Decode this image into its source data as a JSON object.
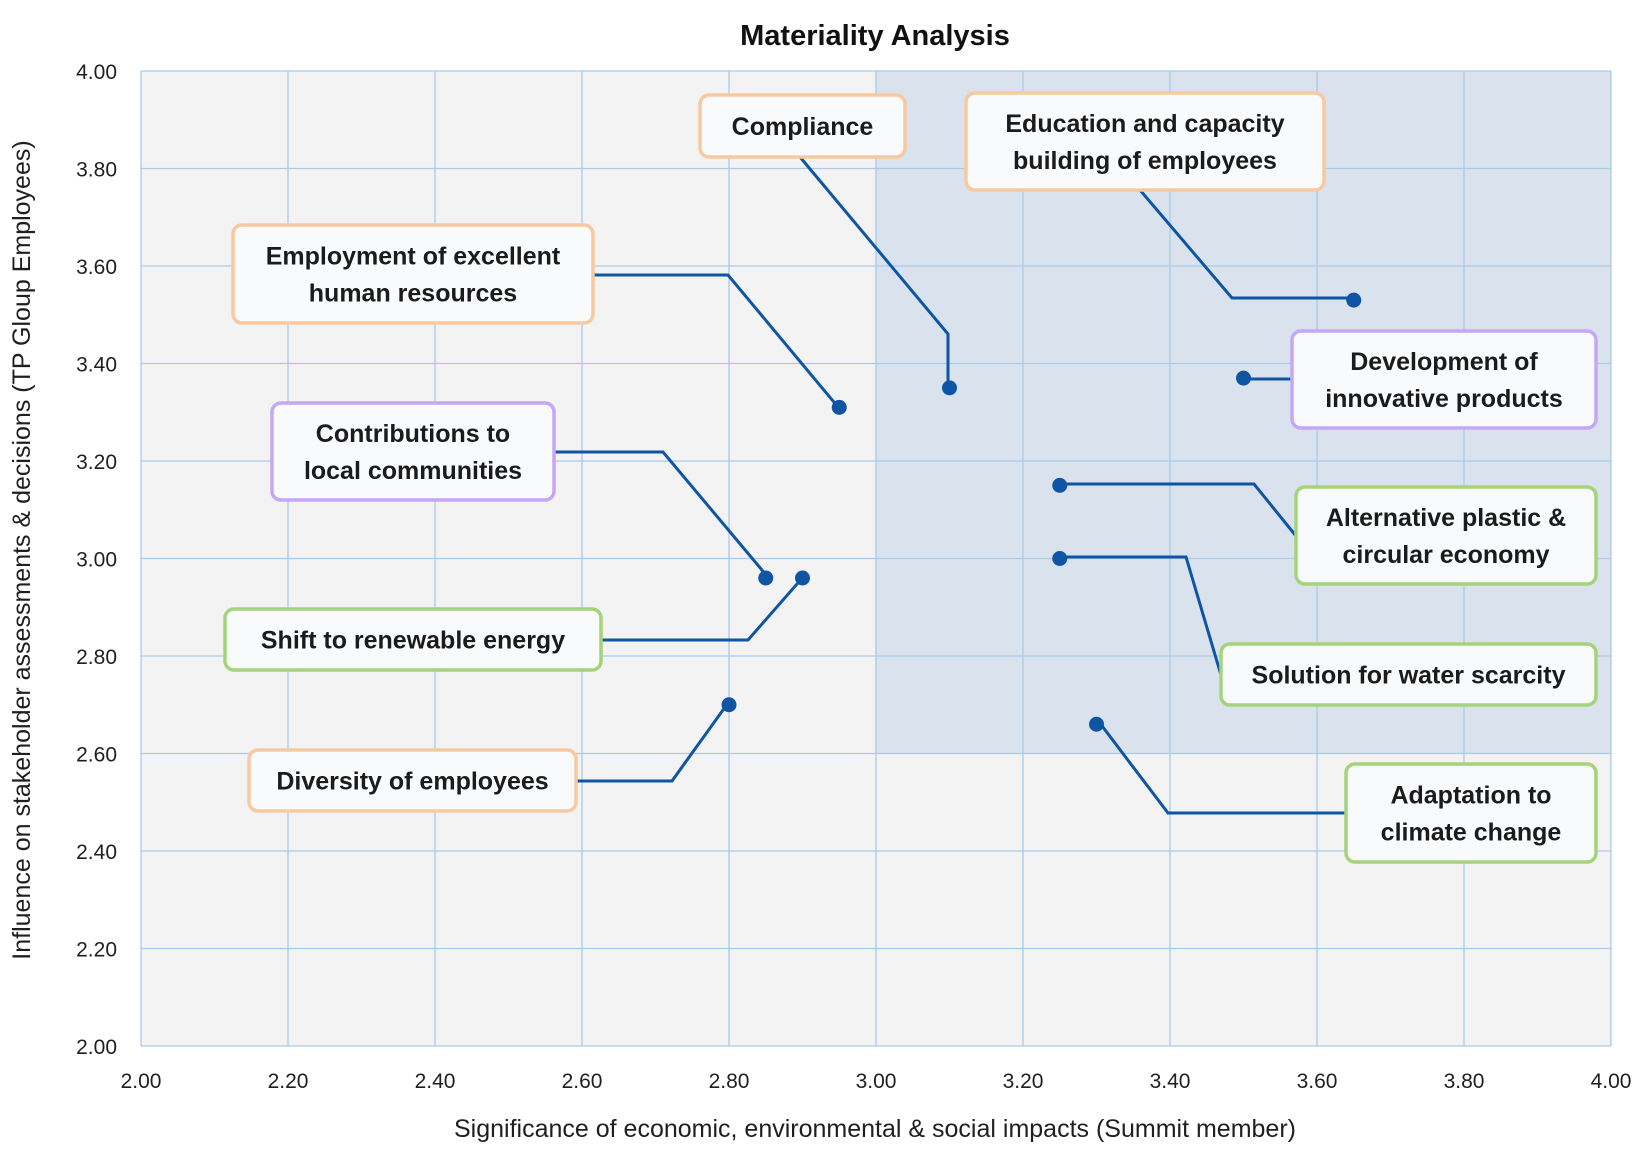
{
  "chart_data": {
    "type": "scatter",
    "title": "Materiality Analysis",
    "xlabel": "Significance of economic, environmental & social impacts (Summit member)",
    "ylabel": "Influence on stakeholder assessments & decisions (TP Gloup Employees)",
    "xlim": [
      2.0,
      4.0
    ],
    "ylim": [
      2.0,
      4.0
    ],
    "x_ticks": [
      "2.00",
      "2.20",
      "2.40",
      "2.60",
      "2.80",
      "3.00",
      "3.20",
      "3.40",
      "3.60",
      "3.80",
      "4.00"
    ],
    "y_ticks": [
      "2.00",
      "2.20",
      "2.40",
      "2.60",
      "2.80",
      "3.00",
      "3.20",
      "3.40",
      "3.60",
      "3.80",
      "4.00"
    ],
    "grid": true,
    "highlight_region": {
      "x": [
        3.0,
        4.0
      ],
      "y": [
        2.6,
        4.0
      ]
    },
    "colors": {
      "plot_background": "#f3f3f4",
      "highlight": "#dae3ed",
      "grid": "#a9cbea",
      "marker": "#0f55a3",
      "orange": "#f8c9a0",
      "purple": "#c6a6f7",
      "green": "#a5d37a"
    },
    "points": [
      {
        "label": "Compliance",
        "x": 3.1,
        "y": 3.35,
        "category": "orange"
      },
      {
        "label": "Education and capacity building of employees",
        "x": 3.65,
        "y": 3.53,
        "category": "orange"
      },
      {
        "label": "Employment of excellent human resources",
        "x": 2.95,
        "y": 3.31,
        "category": "orange"
      },
      {
        "label": "Development of innovative products",
        "x": 3.5,
        "y": 3.37,
        "category": "purple"
      },
      {
        "label": "Contributions to local communities",
        "x": 2.85,
        "y": 2.96,
        "category": "purple"
      },
      {
        "label": "Alternative plastic & circular economy",
        "x": 3.25,
        "y": 3.15,
        "category": "green"
      },
      {
        "label": "Shift to renewable energy",
        "x": 2.9,
        "y": 2.96,
        "category": "green"
      },
      {
        "label": "Solution for water scarcity",
        "x": 3.25,
        "y": 3.0,
        "category": "green"
      },
      {
        "label": "Diversity of employees",
        "x": 2.8,
        "y": 2.7,
        "category": "orange"
      },
      {
        "label": "Adaptation to climate change",
        "x": 3.3,
        "y": 2.66,
        "category": "green"
      }
    ]
  }
}
